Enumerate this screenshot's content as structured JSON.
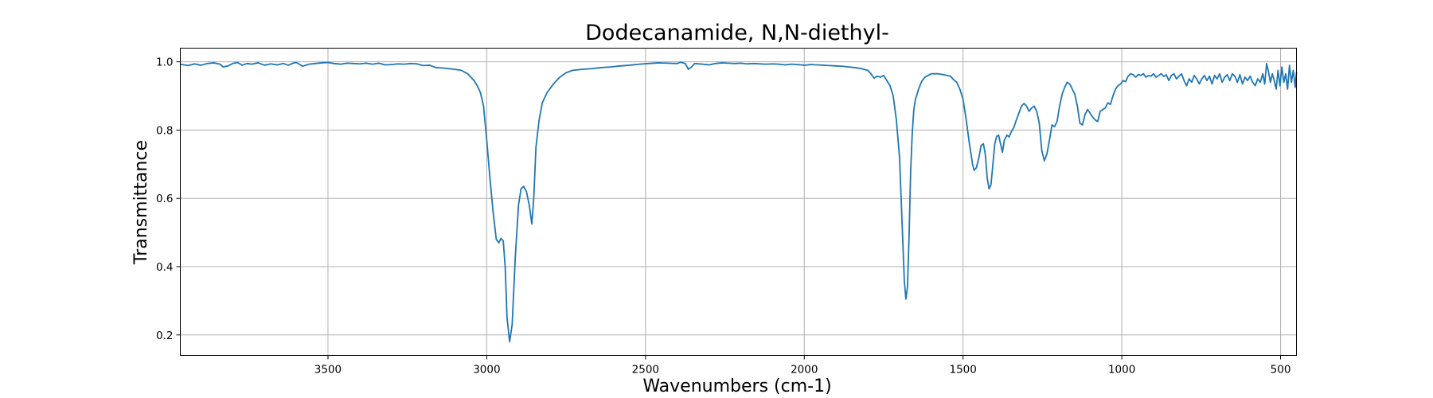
{
  "chart_data": {
    "type": "line",
    "title": "Dodecanamide, N,N-diethyl-",
    "xlabel": "Wavenumbers (cm-1)",
    "ylabel": "Transmittance",
    "xlim": [
      3965,
      450
    ],
    "ylim": [
      0.14,
      1.04
    ],
    "x_reversed": true,
    "grid": true,
    "x_ticks": [
      3500,
      3000,
      2500,
      2000,
      1500,
      1000,
      500
    ],
    "x_tick_labels": [
      "3500",
      "3000",
      "2500",
      "2000",
      "1500",
      "1000",
      "500"
    ],
    "y_ticks": [
      0.2,
      0.4,
      0.6,
      0.8,
      1.0
    ],
    "y_tick_labels": [
      "0.2",
      "0.4",
      "0.6",
      "0.8",
      "1.0"
    ],
    "series": [
      {
        "color": "#1f77b4",
        "points": [
          [
            3965,
            0.993
          ],
          [
            3940,
            0.989
          ],
          [
            3920,
            0.994
          ],
          [
            3900,
            0.99
          ],
          [
            3880,
            0.995
          ],
          [
            3860,
            0.997
          ],
          [
            3840,
            0.993
          ],
          [
            3830,
            0.985
          ],
          [
            3815,
            0.988
          ],
          [
            3800,
            0.995
          ],
          [
            3785,
            0.998
          ],
          [
            3770,
            0.99
          ],
          [
            3755,
            0.995
          ],
          [
            3740,
            0.993
          ],
          [
            3720,
            0.997
          ],
          [
            3700,
            0.99
          ],
          [
            3680,
            0.994
          ],
          [
            3660,
            0.991
          ],
          [
            3640,
            0.995
          ],
          [
            3625,
            0.99
          ],
          [
            3610,
            0.996
          ],
          [
            3600,
            0.998
          ],
          [
            3590,
            0.993
          ],
          [
            3580,
            0.987
          ],
          [
            3560,
            0.993
          ],
          [
            3540,
            0.995
          ],
          [
            3520,
            0.997
          ],
          [
            3500,
            0.998
          ],
          [
            3480,
            0.995
          ],
          [
            3460,
            0.993
          ],
          [
            3440,
            0.996
          ],
          [
            3420,
            0.995
          ],
          [
            3400,
            0.994
          ],
          [
            3380,
            0.996
          ],
          [
            3360,
            0.993
          ],
          [
            3340,
            0.996
          ],
          [
            3320,
            0.991
          ],
          [
            3300,
            0.992
          ],
          [
            3280,
            0.994
          ],
          [
            3260,
            0.993
          ],
          [
            3240,
            0.995
          ],
          [
            3220,
            0.994
          ],
          [
            3200,
            0.989
          ],
          [
            3180,
            0.99
          ],
          [
            3160,
            0.983
          ],
          [
            3140,
            0.982
          ],
          [
            3120,
            0.98
          ],
          [
            3100,
            0.978
          ],
          [
            3080,
            0.975
          ],
          [
            3060,
            0.965
          ],
          [
            3040,
            0.945
          ],
          [
            3030,
            0.93
          ],
          [
            3020,
            0.91
          ],
          [
            3010,
            0.87
          ],
          [
            3000,
            0.77
          ],
          [
            2990,
            0.66
          ],
          [
            2980,
            0.56
          ],
          [
            2970,
            0.48
          ],
          [
            2962,
            0.47
          ],
          [
            2955,
            0.483
          ],
          [
            2948,
            0.475
          ],
          [
            2942,
            0.4
          ],
          [
            2936,
            0.25
          ],
          [
            2928,
            0.18
          ],
          [
            2920,
            0.23
          ],
          [
            2910,
            0.43
          ],
          [
            2900,
            0.58
          ],
          [
            2892,
            0.628
          ],
          [
            2884,
            0.635
          ],
          [
            2875,
            0.62
          ],
          [
            2866,
            0.58
          ],
          [
            2858,
            0.525
          ],
          [
            2852,
            0.6
          ],
          [
            2845,
            0.75
          ],
          [
            2835,
            0.83
          ],
          [
            2825,
            0.88
          ],
          [
            2810,
            0.91
          ],
          [
            2790,
            0.935
          ],
          [
            2770,
            0.955
          ],
          [
            2750,
            0.968
          ],
          [
            2730,
            0.975
          ],
          [
            2700,
            0.978
          ],
          [
            2670,
            0.98
          ],
          [
            2640,
            0.983
          ],
          [
            2610,
            0.985
          ],
          [
            2580,
            0.988
          ],
          [
            2550,
            0.99
          ],
          [
            2520,
            0.993
          ],
          [
            2490,
            0.995
          ],
          [
            2460,
            0.997
          ],
          [
            2430,
            0.996
          ],
          [
            2400,
            0.995
          ],
          [
            2390,
            0.999
          ],
          [
            2375,
            0.995
          ],
          [
            2365,
            0.978
          ],
          [
            2355,
            0.985
          ],
          [
            2345,
            0.995
          ],
          [
            2320,
            0.993
          ],
          [
            2300,
            0.991
          ],
          [
            2280,
            0.995
          ],
          [
            2260,
            0.997
          ],
          [
            2240,
            0.996
          ],
          [
            2220,
            0.995
          ],
          [
            2200,
            0.996
          ],
          [
            2180,
            0.994
          ],
          [
            2160,
            0.995
          ],
          [
            2140,
            0.994
          ],
          [
            2120,
            0.993
          ],
          [
            2100,
            0.994
          ],
          [
            2080,
            0.993
          ],
          [
            2060,
            0.991
          ],
          [
            2040,
            0.993
          ],
          [
            2020,
            0.992
          ],
          [
            2000,
            0.99
          ],
          [
            1980,
            0.992
          ],
          [
            1960,
            0.991
          ],
          [
            1940,
            0.99
          ],
          [
            1920,
            0.989
          ],
          [
            1900,
            0.988
          ],
          [
            1880,
            0.987
          ],
          [
            1860,
            0.985
          ],
          [
            1840,
            0.983
          ],
          [
            1820,
            0.98
          ],
          [
            1800,
            0.975
          ],
          [
            1790,
            0.965
          ],
          [
            1780,
            0.952
          ],
          [
            1770,
            0.958
          ],
          [
            1760,
            0.955
          ],
          [
            1750,
            0.96
          ],
          [
            1740,
            0.945
          ],
          [
            1730,
            0.93
          ],
          [
            1720,
            0.9
          ],
          [
            1710,
            0.83
          ],
          [
            1700,
            0.72
          ],
          [
            1695,
            0.6
          ],
          [
            1690,
            0.48
          ],
          [
            1685,
            0.36
          ],
          [
            1680,
            0.305
          ],
          [
            1675,
            0.34
          ],
          [
            1670,
            0.49
          ],
          [
            1665,
            0.68
          ],
          [
            1660,
            0.79
          ],
          [
            1655,
            0.86
          ],
          [
            1650,
            0.89
          ],
          [
            1640,
            0.92
          ],
          [
            1630,
            0.943
          ],
          [
            1620,
            0.955
          ],
          [
            1600,
            0.965
          ],
          [
            1580,
            0.965
          ],
          [
            1560,
            0.962
          ],
          [
            1540,
            0.958
          ],
          [
            1530,
            0.948
          ],
          [
            1520,
            0.94
          ],
          [
            1510,
            0.92
          ],
          [
            1500,
            0.89
          ],
          [
            1490,
            0.83
          ],
          [
            1480,
            0.76
          ],
          [
            1470,
            0.7
          ],
          [
            1465,
            0.682
          ],
          [
            1458,
            0.69
          ],
          [
            1450,
            0.72
          ],
          [
            1443,
            0.755
          ],
          [
            1436,
            0.76
          ],
          [
            1430,
            0.73
          ],
          [
            1424,
            0.66
          ],
          [
            1418,
            0.628
          ],
          [
            1412,
            0.64
          ],
          [
            1406,
            0.7
          ],
          [
            1400,
            0.76
          ],
          [
            1394,
            0.782
          ],
          [
            1388,
            0.785
          ],
          [
            1382,
            0.76
          ],
          [
            1376,
            0.735
          ],
          [
            1370,
            0.77
          ],
          [
            1362,
            0.785
          ],
          [
            1355,
            0.78
          ],
          [
            1348,
            0.795
          ],
          [
            1340,
            0.808
          ],
          [
            1332,
            0.83
          ],
          [
            1324,
            0.85
          ],
          [
            1316,
            0.87
          ],
          [
            1308,
            0.878
          ],
          [
            1300,
            0.87
          ],
          [
            1292,
            0.855
          ],
          [
            1284,
            0.865
          ],
          [
            1276,
            0.87
          ],
          [
            1268,
            0.855
          ],
          [
            1260,
            0.82
          ],
          [
            1252,
            0.74
          ],
          [
            1244,
            0.71
          ],
          [
            1236,
            0.73
          ],
          [
            1228,
            0.77
          ],
          [
            1220,
            0.815
          ],
          [
            1212,
            0.81
          ],
          [
            1204,
            0.825
          ],
          [
            1196,
            0.87
          ],
          [
            1188,
            0.905
          ],
          [
            1180,
            0.925
          ],
          [
            1172,
            0.94
          ],
          [
            1164,
            0.935
          ],
          [
            1156,
            0.92
          ],
          [
            1148,
            0.905
          ],
          [
            1140,
            0.87
          ],
          [
            1132,
            0.82
          ],
          [
            1124,
            0.815
          ],
          [
            1116,
            0.845
          ],
          [
            1108,
            0.86
          ],
          [
            1100,
            0.85
          ],
          [
            1092,
            0.838
          ],
          [
            1084,
            0.83
          ],
          [
            1076,
            0.825
          ],
          [
            1068,
            0.855
          ],
          [
            1060,
            0.86
          ],
          [
            1052,
            0.865
          ],
          [
            1044,
            0.88
          ],
          [
            1036,
            0.875
          ],
          [
            1028,
            0.9
          ],
          [
            1020,
            0.92
          ],
          [
            1012,
            0.93
          ],
          [
            1004,
            0.935
          ],
          [
            996,
            0.945
          ],
          [
            988,
            0.942
          ],
          [
            980,
            0.958
          ],
          [
            972,
            0.965
          ],
          [
            964,
            0.962
          ],
          [
            956,
            0.955
          ],
          [
            948,
            0.963
          ],
          [
            940,
            0.96
          ],
          [
            932,
            0.965
          ],
          [
            924,
            0.955
          ],
          [
            916,
            0.96
          ],
          [
            908,
            0.958
          ],
          [
            900,
            0.965
          ],
          [
            892,
            0.955
          ],
          [
            884,
            0.96
          ],
          [
            876,
            0.965
          ],
          [
            868,
            0.957
          ],
          [
            860,
            0.962
          ],
          [
            852,
            0.945
          ],
          [
            844,
            0.96
          ],
          [
            836,
            0.965
          ],
          [
            828,
            0.95
          ],
          [
            820,
            0.958
          ],
          [
            812,
            0.965
          ],
          [
            804,
            0.945
          ],
          [
            796,
            0.93
          ],
          [
            788,
            0.95
          ],
          [
            780,
            0.94
          ],
          [
            772,
            0.96
          ],
          [
            764,
            0.95
          ],
          [
            756,
            0.935
          ],
          [
            748,
            0.95
          ],
          [
            740,
            0.96
          ],
          [
            732,
            0.945
          ],
          [
            724,
            0.958
          ],
          [
            716,
            0.935
          ],
          [
            708,
            0.96
          ],
          [
            700,
            0.95
          ],
          [
            692,
            0.965
          ],
          [
            684,
            0.94
          ],
          [
            676,
            0.955
          ],
          [
            668,
            0.962
          ],
          [
            660,
            0.945
          ],
          [
            652,
            0.965
          ],
          [
            644,
            0.958
          ],
          [
            636,
            0.94
          ],
          [
            628,
            0.962
          ],
          [
            620,
            0.935
          ],
          [
            612,
            0.955
          ],
          [
            604,
            0.945
          ],
          [
            596,
            0.958
          ],
          [
            588,
            0.94
          ],
          [
            580,
            0.93
          ],
          [
            572,
            0.95
          ],
          [
            564,
            0.94
          ],
          [
            556,
            0.965
          ],
          [
            550,
            0.935
          ],
          [
            544,
            0.995
          ],
          [
            538,
            0.97
          ],
          [
            532,
            0.94
          ],
          [
            526,
            0.965
          ],
          [
            520,
            0.945
          ],
          [
            514,
            0.92
          ],
          [
            508,
            0.975
          ],
          [
            502,
            0.93
          ],
          [
            496,
            0.985
          ],
          [
            490,
            0.94
          ],
          [
            484,
            0.965
          ],
          [
            478,
            0.92
          ],
          [
            472,
            0.99
          ],
          [
            466,
            0.94
          ],
          [
            460,
            0.975
          ],
          [
            454,
            0.925
          ],
          [
            450,
            0.97
          ]
        ]
      }
    ]
  }
}
